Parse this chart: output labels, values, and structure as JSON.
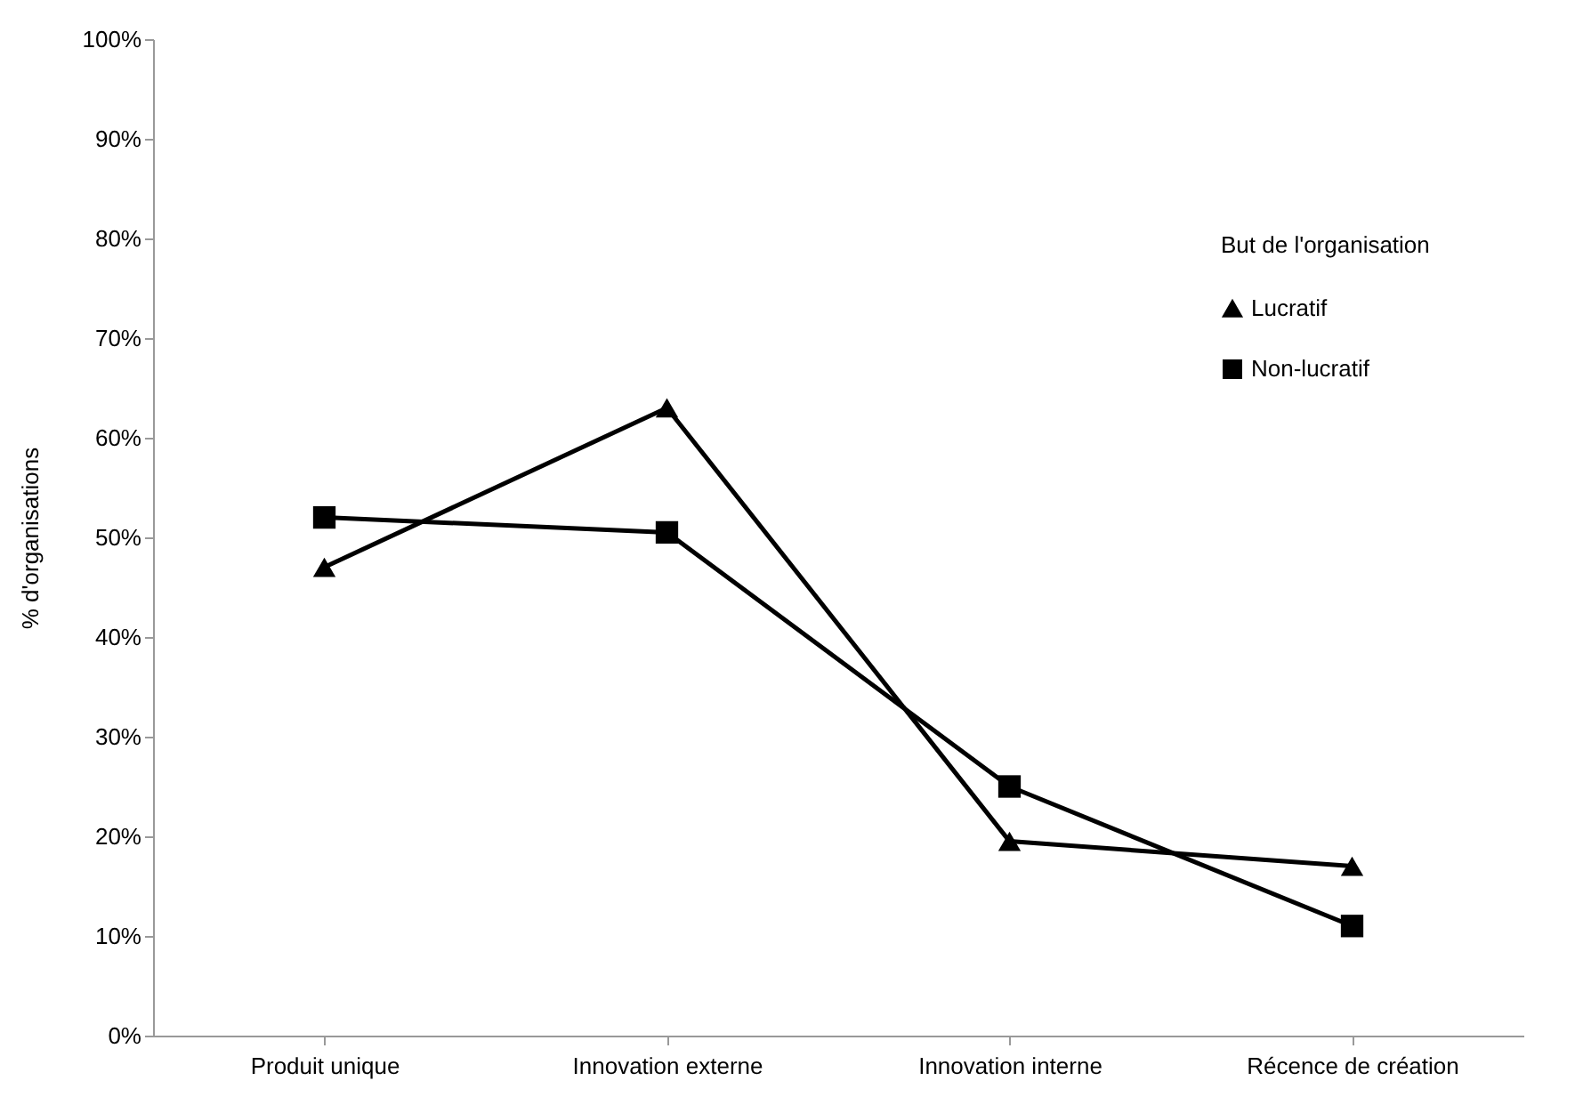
{
  "chart_data": {
    "type": "line",
    "ylabel": "% d'organisations",
    "legend_title": "But de l'organisation",
    "categories": [
      "Produit unique",
      "Innovation externe",
      "Innovation interne",
      "Récence de création"
    ],
    "series": [
      {
        "name": "Lucratif",
        "color": "#000000",
        "marker": "triangle",
        "values": [
          47,
          63,
          19.5,
          17
        ]
      },
      {
        "name": "Non-lucratif",
        "color": "#000000",
        "marker": "square",
        "values": [
          52,
          50.5,
          25,
          11
        ]
      }
    ],
    "ylim": [
      0,
      100
    ],
    "yticks": [
      {
        "value": 0,
        "label": "0%"
      },
      {
        "value": 10,
        "label": "10%"
      },
      {
        "value": 20,
        "label": "20%"
      },
      {
        "value": 30,
        "label": "30%"
      },
      {
        "value": 40,
        "label": "40%"
      },
      {
        "value": 50,
        "label": "50%"
      },
      {
        "value": 60,
        "label": "60%"
      },
      {
        "value": 70,
        "label": "70%"
      },
      {
        "value": 80,
        "label": "80%"
      },
      {
        "value": 90,
        "label": "90%"
      },
      {
        "value": 100,
        "label": "100%"
      }
    ],
    "grid": false,
    "legend": "right",
    "line_style": "solid"
  }
}
